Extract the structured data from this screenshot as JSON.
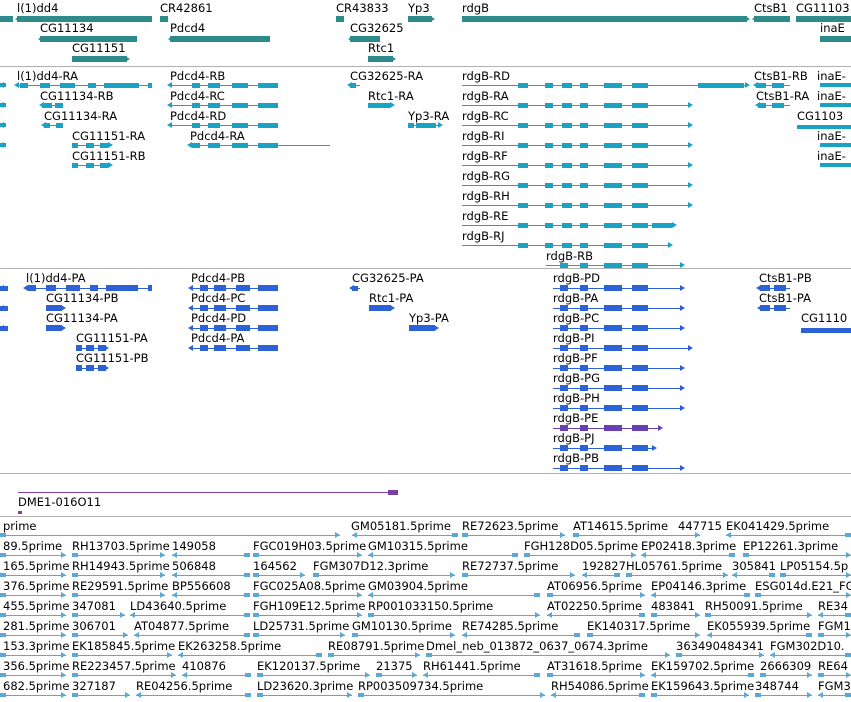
{
  "colors": {
    "gene": "#2e8b8b",
    "transcript": "#1aa2c4",
    "protein": "#2c62d6",
    "contig": "#7b3fa7",
    "est": "#5ba8d4",
    "separator": "#b0b0b0"
  },
  "tracks": {
    "genes": {
      "items": [
        "l(1)dd4",
        "CG11134",
        "CG11151",
        "CR42861",
        "Pdcd4",
        "CR43833",
        "CG32625",
        "Rtc1",
        "Yp3",
        "rdgB",
        "CtsB1",
        "CG11103",
        "inaE"
      ]
    },
    "transcripts": {
      "items": [
        "l(1)dd4-RA",
        "CG11134-RB",
        "CG11134-RA",
        "CG11151-RA",
        "CG11151-RB",
        "Pdcd4-RB",
        "Pdcd4-RC",
        "Pdcd4-RD",
        "Pdcd4-RA",
        "CG32625-RA",
        "Rtc1-RA",
        "Yp3-RA",
        "rdgB-RD",
        "rdgB-RA",
        "rdgB-RC",
        "rdgB-RI",
        "rdgB-RF",
        "rdgB-RG",
        "rdgB-RH",
        "rdgB-RE",
        "rdgB-RJ",
        "rdgB-RB",
        "CtsB1-RB",
        "CtsB1-RA",
        "inaE-",
        "inaE-",
        "CG1103",
        "inaE-",
        "inaE-"
      ]
    },
    "proteins": {
      "items": [
        "l(1)dd4-PA",
        "CG11134-PB",
        "CG11134-PA",
        "CG11151-PA",
        "CG11151-PB",
        "Pdcd4-PB",
        "Pdcd4-PC",
        "Pdcd4-PD",
        "Pdcd4-PA",
        "CG32625-PA",
        "Rtc1-PA",
        "Yp3-PA",
        "rdgB-PD",
        "rdgB-PA",
        "rdgB-PC",
        "rdgB-PI",
        "rdgB-PF",
        "rdgB-PG",
        "rdgB-PH",
        "rdgB-PE",
        "rdgB-PJ",
        "rdgB-PB",
        "CtsB1-PB",
        "CtsB1-PA",
        "CG1110"
      ]
    },
    "contigs": {
      "items": [
        "DME1-016O11"
      ]
    },
    "ests": {
      "items": [
        "prime",
        "GM05181.5prime",
        "RE72623.5prime",
        "AT14615.5prime",
        "447715",
        "EK041429.5prime",
        "89.5prime",
        "RH13703.5prime",
        "149058",
        "FGC019H03.5prime",
        "GM10315.5prime",
        "FGH128D05.5prime",
        "EP02418.3prime",
        "EP12261.3prime",
        "165.5prime",
        "RH14943.5prime",
        "506848",
        "164562",
        "FGM307D12.3prime",
        "RE72737.5prime",
        "192827",
        "HL05761.5prime",
        "305841",
        "LP05154.5p",
        "376.5prime",
        "RE29591.5prime",
        "BP556608",
        "FGC025A08.5prime",
        "GM03904.5prime",
        "AT06956.5prime",
        "EP04146.3prime",
        "ESG014d.E21_FG",
        "455.5prime",
        "347081",
        "LD43640.5prime",
        "FGH109E12.5prime",
        "RP001033150.5prime",
        "AT02250.5prime",
        "483841",
        "RH50091.5prime",
        "RE34",
        "281.5prime",
        "306701",
        "AT04877.5prime",
        "LD25731.5prime",
        "GM10130.5prime",
        "RE74285.5prime",
        "EK140317.5prime",
        "EK055939.5prime",
        "FGM1",
        "153.3prime",
        "EK185845.5prime",
        "EK263258.5prime",
        "RE08791.5prime",
        "Dmel_neb_013872_0637_0674.3prime",
        "363490484341",
        "FGM302D10.",
        "356.5prime",
        "RE223457.5prime",
        "410876",
        "EK120137.5prime",
        "21375",
        "RH61441.5prime",
        "AT31618.5prime",
        "EK159702.5prime",
        "2666309",
        "RE64",
        "682.5prime",
        "327187",
        "RE04256.5prime",
        "LD23620.3prime",
        "RP003509734.5prime",
        "RH54086.5prime",
        "EK159643.5prime",
        "348744",
        "FGM3"
      ]
    }
  }
}
